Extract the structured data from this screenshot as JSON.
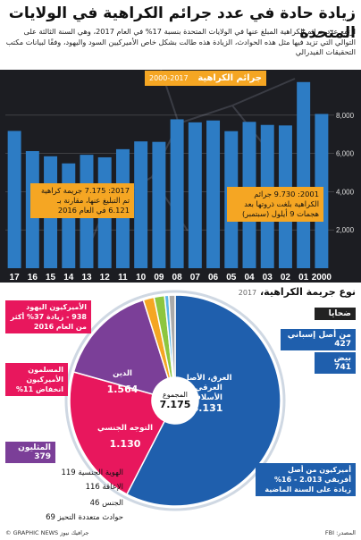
{
  "header": {
    "title": "زيادة حادة في عدد جرائم الكراهية في الولايات المتحدة",
    "intro": "ارتفع عدد جرائم الكراهية المبلغ عنها في الولايات المتحدة بنسبة 17% في العام 2017، وهي السنة الثالثة على التوالي التي تزيد فيها مثل هذه الحوادث، الزيادة هذه طالت بشكل خاص الأميركيين السود واليهود، وفقًا لبيانات مكتب التحقيقات الفيدرالي"
  },
  "bar_chart": {
    "title": "جرائم الكراهية",
    "subtitle": "2000-2017"
  },
  "callouts": {
    "c2017": "2017: 7.175 جريمة كراهية تم التبليغ عنها، مقارنة بـ 6.121 في العام 2016",
    "c2001": "2001: 9.730 جرائم الكراهية بلغت ذروتها بعد هجمات 9 أيلول (سبتمبر)"
  },
  "donut": {
    "section_title": "نوع جريمة الكراهية،",
    "section_year": "2017",
    "total_label": "المجموع",
    "total_value": "7.175",
    "race_label": "العرق، الأصل العرقي، الأسلاف",
    "race_value": "4.131",
    "religion_label": "الدين",
    "religion_value": "1.564",
    "sexual_label": "التوجه الجنسي",
    "sexual_value": "1.130",
    "victims_header": "ضحايا",
    "hispanic": "من أصل إسباني 427",
    "white": "بيض 741",
    "black": "أميركيون من أصل أفريقي 2.013 - 16% زيادة على السنة الماضية",
    "jewish": "الأميركيون اليهود 938 - زيادة 37% أكثر من العام 2016",
    "muslim": "المسلمون الأميركيون انخفاض 11%",
    "lgbt": "المثليون 379",
    "gender_identity": "الهوية الجنسية 119",
    "disability": "الإعاقة 116",
    "gender": "الجنس 46",
    "multi_bias": "حوادث متعددة التحيز 69"
  },
  "footer": {
    "source": "المصدر: FBI",
    "credit": "© GRAPHIC NEWS جرافيك نيوز"
  },
  "colors": {
    "bar": "#2d7cc4",
    "race": "#1f5fad",
    "religion": "#e8175d",
    "sexual": "#7b3f98",
    "gender_identity": "#f5a623",
    "disability": "#8dc63f",
    "gender": "#5bb6e8",
    "multi": "#aaaaaa",
    "accent": "#f5a623"
  },
  "chart_data": [
    {
      "type": "bar",
      "title": "جرائم الكراهية",
      "subtitle": "2000-2017",
      "categories": [
        "17",
        "16",
        "15",
        "14",
        "13",
        "12",
        "11",
        "10",
        "09",
        "08",
        "07",
        "06",
        "05",
        "04",
        "03",
        "02",
        "01",
        "2000"
      ],
      "values": [
        7175,
        6121,
        5850,
        5479,
        5928,
        5796,
        6222,
        6628,
        6604,
        7783,
        7624,
        7722,
        7163,
        7649,
        7489,
        7462,
        9730,
        8063
      ],
      "ylim": [
        0,
        10000
      ],
      "yticks": [
        2000,
        4000,
        6000,
        8000
      ],
      "ytick_labels": [
        "2,000",
        "4,000",
        "6,000",
        "8,000"
      ]
    },
    {
      "type": "pie",
      "title": "نوع جريمة الكراهية، 2017",
      "labels": [
        "العرق، الأصل العرقي، الأسلاف",
        "الدين",
        "التوجه الجنسي",
        "الهوية الجنسية",
        "الإعاقة",
        "الجنس",
        "حوادث متعددة التحيز"
      ],
      "values": [
        4131,
        1564,
        1130,
        119,
        116,
        46,
        69
      ]
    }
  ]
}
